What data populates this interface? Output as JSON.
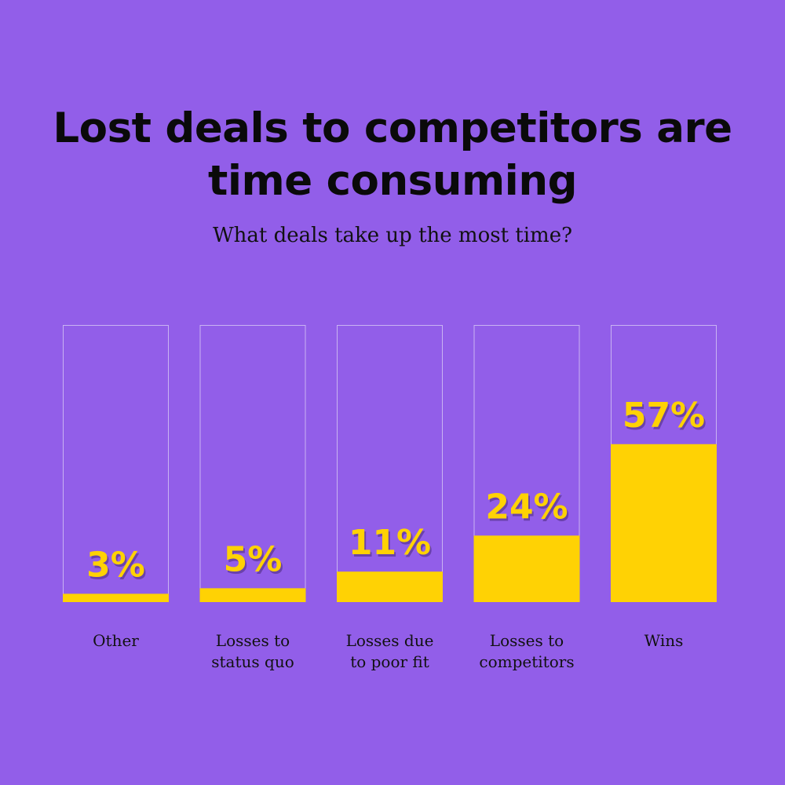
{
  "chart_data": {
    "type": "bar",
    "title": "Lost deals to competitors are time consuming",
    "subtitle": "What deals take up the most time?",
    "categories": [
      [
        "Other"
      ],
      [
        "Losses to",
        "status quo"
      ],
      [
        "Losses due",
        "to poor fit"
      ],
      [
        "Losses to",
        "competitors"
      ],
      [
        "Wins"
      ]
    ],
    "values": [
      3,
      5,
      11,
      24,
      57
    ],
    "value_labels": [
      "3%",
      "5%",
      "11%",
      "24%",
      "57%"
    ],
    "unit": "%",
    "ylim": [
      0,
      100
    ],
    "grid": false,
    "legend": "none",
    "colors": {
      "background": "#925ee9",
      "bar": "#ffd204",
      "outline": "#c9b3f2",
      "text": "#0a0a0a"
    }
  }
}
